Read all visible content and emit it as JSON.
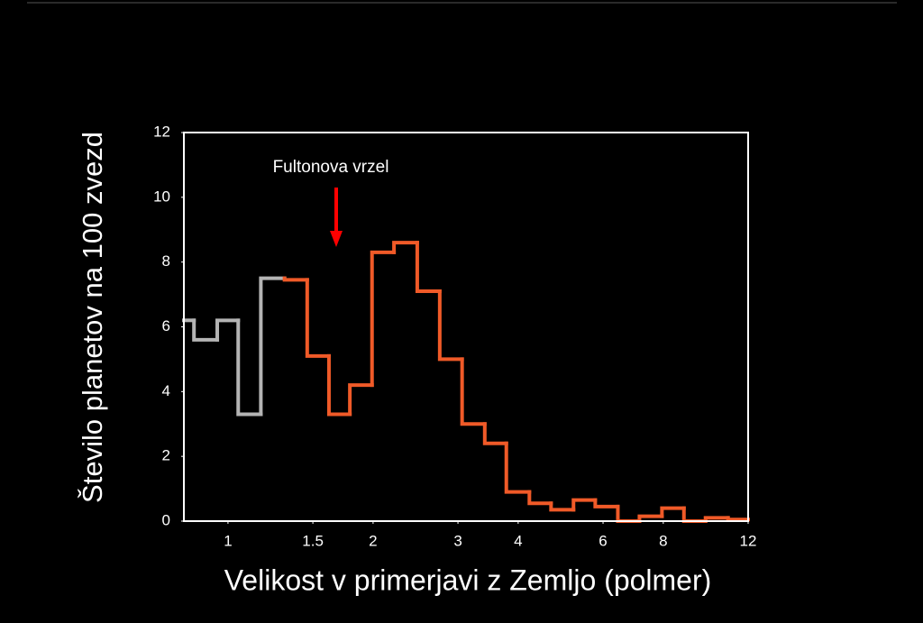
{
  "chart_data": {
    "type": "histogram",
    "xlabel": "Velikost v primerjavi z Zemljo (polmer)",
    "ylabel": "Število planetov na 100 zvezd",
    "annotation": "Fultonova vrzel",
    "bins": [
      0.81,
      0.85,
      0.95,
      1.05,
      1.17,
      1.31,
      1.46,
      1.62,
      1.79,
      1.99,
      2.21,
      2.47,
      2.75,
      3.06,
      3.41,
      3.78,
      4.22,
      4.68,
      5.21,
      5.78,
      6.44,
      7.14,
      7.95,
      8.83,
      9.79,
      10.9,
      12
    ],
    "counts": [
      6.2,
      5.6,
      6.2,
      3.3,
      7.5,
      7.45,
      5.1,
      3.3,
      4.2,
      8.3,
      8.6,
      7.1,
      5.0,
      3.0,
      2.4,
      0.9,
      0.55,
      0.35,
      0.65,
      0.45,
      0.0,
      0.15,
      0.4,
      0.0,
      0.1,
      0.05
    ],
    "colors": [
      "#b4b4b4",
      "#b4b4b4",
      "#b4b4b4",
      "#b4b4b4",
      "#b4b4b4",
      "#f05a28",
      "#f05a28",
      "#f05a28",
      "#f05a28",
      "#f05a28",
      "#f05a28",
      "#f05a28",
      "#f05a28",
      "#f05a28",
      "#f05a28",
      "#f05a28",
      "#f05a28",
      "#f05a28",
      "#f05a28",
      "#f05a28",
      "#f05a28",
      "#f05a28",
      "#f05a28",
      "#f05a28",
      "#f05a28",
      "#f05a28"
    ],
    "xscale": "log",
    "xlim": [
      0.81,
      12
    ],
    "ylim": [
      0,
      12
    ],
    "xticks": [
      1,
      1.5,
      2,
      3,
      4,
      6,
      8,
      12
    ],
    "yticks": [
      0,
      2,
      4,
      6,
      8,
      10,
      12
    ],
    "frame_color": "#ffffff",
    "annotation_color": "#ff0000"
  }
}
